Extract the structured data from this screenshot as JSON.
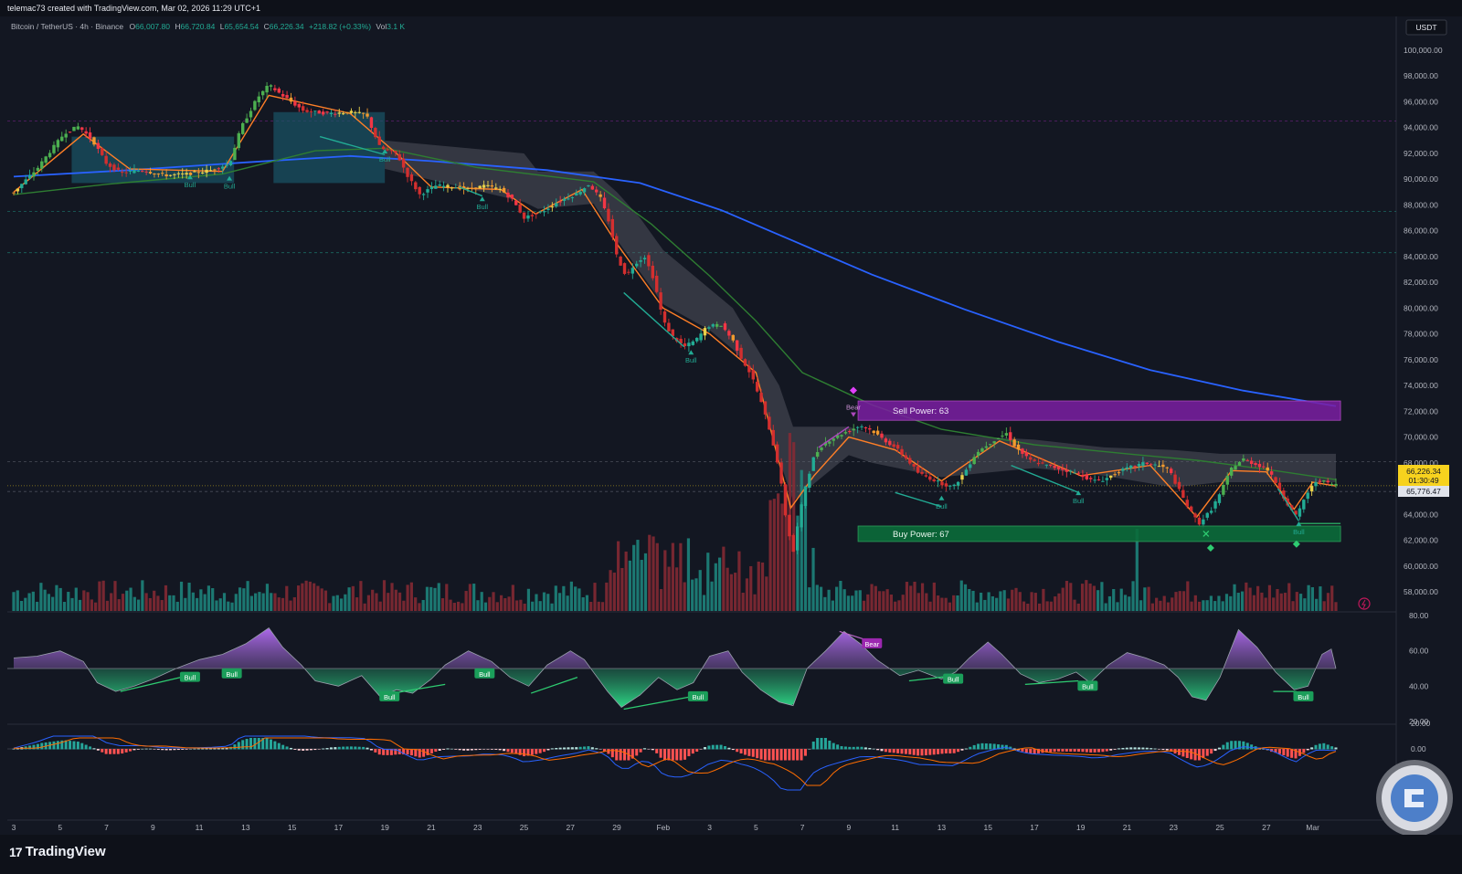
{
  "header": {
    "created_by": "telemac73 created with TradingView.com, Mar 02, 2026 11:29 UTC+1"
  },
  "legend": {
    "symbol": "Bitcoin / TetherUS · 4h · Binance",
    "open_label": "O",
    "open": "66,007.80",
    "high_label": "H",
    "high": "66,720.84",
    "low_label": "L",
    "low": "65,654.54",
    "close_label": "C",
    "close": "66,226.34",
    "change": "+218.82 (+0.33%)",
    "vol_label": "Vol",
    "vol": "3.1 K"
  },
  "currency_button": "USDT",
  "price_tags": {
    "last": "66,226.34",
    "countdown": "01:30:49",
    "level": "65,776.47"
  },
  "zones": {
    "sell_label": "Sell Power: 63",
    "buy_label": "Buy Power: 67"
  },
  "signals": {
    "bull": "Bull",
    "bear": "Bear"
  },
  "footer": {
    "brand": "TradingView"
  },
  "colors": {
    "background": "#131722",
    "bull_candle": "#22ab94",
    "bear_candle": "#f23645",
    "sma_blue": "#2962ff",
    "ema_green": "#2e7d32",
    "ema_orange": "#ff7f27",
    "sell_zone": "#7b1fa2",
    "buy_zone": "#0b6b3a",
    "price_tag": "#f7d21e"
  },
  "chart_data": [
    {
      "panel": "price",
      "type": "candlestick",
      "ylim": [
        57000,
        100800
      ],
      "y_ticks": [
        58000,
        60000,
        62000,
        64000,
        66000,
        68000,
        70000,
        72000,
        74000,
        76000,
        78000,
        80000,
        82000,
        84000,
        86000,
        88000,
        90000,
        92000,
        94000,
        96000,
        98000,
        100000
      ],
      "y_tick_labels": [
        "58,000.00",
        "60,000.00",
        "62,000.00",
        "64,000.00",
        "66,000.00",
        "68,000.00",
        "70,000.00",
        "72,000.00",
        "74,000.00",
        "76,000.00",
        "78,000.00",
        "80,000.00",
        "82,000.00",
        "84,000.00",
        "86,000.00",
        "88,000.00",
        "90,000.00",
        "92,000.00",
        "94,000.00",
        "96,000.00",
        "98,000.00",
        "100,000.00"
      ],
      "x_tick_labels": [
        "3",
        "5",
        "7",
        "9",
        "11",
        "13",
        "15",
        "17",
        "19",
        "21",
        "23",
        "25",
        "27",
        "29",
        "Feb",
        "3",
        "5",
        "7",
        "9",
        "11",
        "13",
        "15",
        "17",
        "19",
        "21",
        "23",
        "25",
        "27",
        "Mar"
      ],
      "price_path": [
        {
          "d": 0.0,
          "p": 89000
        },
        {
          "d": 1.0,
          "p": 90800
        },
        {
          "d": 1.5,
          "p": 92000
        },
        {
          "d": 2.2,
          "p": 93600
        },
        {
          "d": 2.8,
          "p": 94100
        },
        {
          "d": 3.4,
          "p": 93000
        },
        {
          "d": 4.0,
          "p": 91200
        },
        {
          "d": 4.6,
          "p": 90500
        },
        {
          "d": 5.5,
          "p": 90700
        },
        {
          "d": 6.5,
          "p": 90300
        },
        {
          "d": 7.5,
          "p": 90400
        },
        {
          "d": 8.5,
          "p": 90700
        },
        {
          "d": 9.3,
          "p": 91200
        },
        {
          "d": 9.8,
          "p": 94000
        },
        {
          "d": 10.5,
          "p": 96300
        },
        {
          "d": 11.0,
          "p": 97300
        },
        {
          "d": 11.5,
          "p": 96600
        },
        {
          "d": 12.5,
          "p": 95300
        },
        {
          "d": 13.5,
          "p": 95100
        },
        {
          "d": 14.5,
          "p": 95200
        },
        {
          "d": 15.2,
          "p": 95000
        },
        {
          "d": 15.8,
          "p": 92400
        },
        {
          "d": 16.5,
          "p": 92000
        },
        {
          "d": 17.0,
          "p": 90200
        },
        {
          "d": 17.5,
          "p": 88800
        },
        {
          "d": 18.2,
          "p": 89500
        },
        {
          "d": 19.0,
          "p": 89400
        },
        {
          "d": 19.6,
          "p": 89200
        },
        {
          "d": 20.3,
          "p": 89500
        },
        {
          "d": 21.0,
          "p": 89200
        },
        {
          "d": 21.5,
          "p": 88400
        },
        {
          "d": 22.0,
          "p": 87000
        },
        {
          "d": 22.8,
          "p": 87500
        },
        {
          "d": 23.5,
          "p": 88300
        },
        {
          "d": 24.2,
          "p": 88800
        },
        {
          "d": 24.8,
          "p": 89600
        },
        {
          "d": 25.3,
          "p": 88500
        },
        {
          "d": 25.7,
          "p": 86500
        },
        {
          "d": 26.0,
          "p": 84000
        },
        {
          "d": 26.4,
          "p": 82500
        },
        {
          "d": 26.8,
          "p": 83500
        },
        {
          "d": 27.2,
          "p": 84000
        },
        {
          "d": 27.6,
          "p": 82200
        },
        {
          "d": 28.0,
          "p": 79000
        },
        {
          "d": 28.4,
          "p": 77800
        },
        {
          "d": 28.9,
          "p": 77000
        },
        {
          "d": 29.4,
          "p": 77500
        },
        {
          "d": 29.9,
          "p": 78600
        },
        {
          "d": 30.5,
          "p": 78700
        },
        {
          "d": 31.0,
          "p": 77500
        },
        {
          "d": 31.4,
          "p": 76000
        },
        {
          "d": 31.8,
          "p": 74800
        },
        {
          "d": 32.2,
          "p": 72800
        },
        {
          "d": 32.6,
          "p": 70500
        },
        {
          "d": 33.0,
          "p": 67500
        },
        {
          "d": 33.3,
          "p": 63500
        },
        {
          "d": 33.6,
          "p": 61000
        },
        {
          "d": 33.8,
          "p": 63200
        },
        {
          "d": 34.1,
          "p": 66000
        },
        {
          "d": 34.5,
          "p": 68500
        },
        {
          "d": 34.9,
          "p": 69500
        },
        {
          "d": 35.4,
          "p": 70000
        },
        {
          "d": 36.0,
          "p": 70500
        },
        {
          "d": 36.5,
          "p": 70900
        },
        {
          "d": 37.0,
          "p": 70500
        },
        {
          "d": 37.5,
          "p": 69800
        },
        {
          "d": 38.0,
          "p": 69200
        },
        {
          "d": 38.5,
          "p": 68300
        },
        {
          "d": 39.0,
          "p": 67200
        },
        {
          "d": 39.5,
          "p": 66800
        },
        {
          "d": 40.0,
          "p": 66400
        },
        {
          "d": 40.5,
          "p": 66100
        },
        {
          "d": 41.0,
          "p": 67300
        },
        {
          "d": 41.5,
          "p": 68800
        },
        {
          "d": 42.2,
          "p": 69700
        },
        {
          "d": 42.8,
          "p": 70300
        },
        {
          "d": 43.2,
          "p": 69200
        },
        {
          "d": 43.8,
          "p": 68200
        },
        {
          "d": 44.5,
          "p": 67800
        },
        {
          "d": 45.2,
          "p": 67500
        },
        {
          "d": 46.0,
          "p": 67100
        },
        {
          "d": 46.5,
          "p": 66600
        },
        {
          "d": 47.0,
          "p": 66700
        },
        {
          "d": 47.6,
          "p": 67300
        },
        {
          "d": 48.2,
          "p": 67700
        },
        {
          "d": 48.8,
          "p": 68000
        },
        {
          "d": 49.3,
          "p": 67800
        },
        {
          "d": 49.8,
          "p": 67500
        },
        {
          "d": 50.2,
          "p": 66000
        },
        {
          "d": 50.7,
          "p": 64300
        },
        {
          "d": 51.1,
          "p": 63300
        },
        {
          "d": 51.6,
          "p": 64300
        },
        {
          "d": 52.0,
          "p": 65600
        },
        {
          "d": 52.5,
          "p": 67600
        },
        {
          "d": 53.0,
          "p": 68300
        },
        {
          "d": 53.5,
          "p": 67900
        },
        {
          "d": 54.0,
          "p": 67600
        },
        {
          "d": 54.5,
          "p": 66200
        },
        {
          "d": 55.0,
          "p": 64500
        },
        {
          "d": 55.3,
          "p": 63800
        },
        {
          "d": 55.7,
          "p": 65500
        },
        {
          "d": 56.2,
          "p": 66700
        },
        {
          "d": 56.7,
          "p": 66400
        },
        {
          "d": 57.0,
          "p": 66300
        }
      ],
      "ema_fast_orange": [
        {
          "d": 0.0,
          "p": 89000
        },
        {
          "d": 3.0,
          "p": 93500
        },
        {
          "d": 5.0,
          "p": 90800
        },
        {
          "d": 9.0,
          "p": 90600
        },
        {
          "d": 11.0,
          "p": 96500
        },
        {
          "d": 14.5,
          "p": 95100
        },
        {
          "d": 16.5,
          "p": 92000
        },
        {
          "d": 18.0,
          "p": 89400
        },
        {
          "d": 21.0,
          "p": 89200
        },
        {
          "d": 22.5,
          "p": 87300
        },
        {
          "d": 24.5,
          "p": 89200
        },
        {
          "d": 26.0,
          "p": 85000
        },
        {
          "d": 28.0,
          "p": 80000
        },
        {
          "d": 30.0,
          "p": 78000
        },
        {
          "d": 32.0,
          "p": 75000
        },
        {
          "d": 33.5,
          "p": 64500
        },
        {
          "d": 34.5,
          "p": 67000
        },
        {
          "d": 36.0,
          "p": 70000
        },
        {
          "d": 38.0,
          "p": 69000
        },
        {
          "d": 40.0,
          "p": 66600
        },
        {
          "d": 42.5,
          "p": 69700
        },
        {
          "d": 46.0,
          "p": 67000
        },
        {
          "d": 49.0,
          "p": 67800
        },
        {
          "d": 51.0,
          "p": 63800
        },
        {
          "d": 52.5,
          "p": 67400
        },
        {
          "d": 54.0,
          "p": 67300
        },
        {
          "d": 55.2,
          "p": 64400
        },
        {
          "d": 56.0,
          "p": 66500
        },
        {
          "d": 57.0,
          "p": 66200
        }
      ],
      "ema_mid_green": [
        {
          "d": 0.0,
          "p": 88800
        },
        {
          "d": 4.0,
          "p": 89600
        },
        {
          "d": 9.0,
          "p": 90400
        },
        {
          "d": 13.0,
          "p": 92200
        },
        {
          "d": 16.0,
          "p": 92400
        },
        {
          "d": 20.0,
          "p": 90900
        },
        {
          "d": 25.0,
          "p": 89800
        },
        {
          "d": 27.5,
          "p": 86500
        },
        {
          "d": 30.0,
          "p": 82500
        },
        {
          "d": 32.0,
          "p": 79000
        },
        {
          "d": 34.0,
          "p": 75000
        },
        {
          "d": 37.0,
          "p": 72500
        },
        {
          "d": 40.0,
          "p": 70600
        },
        {
          "d": 44.0,
          "p": 69400
        },
        {
          "d": 48.0,
          "p": 68700
        },
        {
          "d": 51.0,
          "p": 68200
        },
        {
          "d": 54.0,
          "p": 67500
        },
        {
          "d": 57.0,
          "p": 66700
        }
      ],
      "sma_slow_blue": [
        {
          "d": 0.0,
          "p": 90200
        },
        {
          "d": 5.0,
          "p": 90700
        },
        {
          "d": 10.0,
          "p": 91300
        },
        {
          "d": 14.5,
          "p": 91800
        },
        {
          "d": 18.0,
          "p": 91400
        },
        {
          "d": 23.0,
          "p": 90700
        },
        {
          "d": 27.0,
          "p": 89700
        },
        {
          "d": 30.5,
          "p": 87600
        },
        {
          "d": 33.5,
          "p": 85300
        },
        {
          "d": 37.0,
          "p": 82600
        },
        {
          "d": 41.0,
          "p": 79900
        },
        {
          "d": 45.0,
          "p": 77400
        },
        {
          "d": 49.0,
          "p": 75200
        },
        {
          "d": 53.0,
          "p": 73600
        },
        {
          "d": 57.0,
          "p": 72400
        }
      ],
      "sell_zone": {
        "low": 71300,
        "high": 72800,
        "from_d": 36.4,
        "to_d": 57.2
      },
      "buy_zone": {
        "low": 61900,
        "high": 63100,
        "from_d": 36.4,
        "to_d": 57.2
      }
    },
    {
      "panel": "oscillator",
      "type": "area",
      "ylim": [
        20,
        80
      ],
      "y_ticks": [
        20,
        40,
        60,
        80
      ],
      "y_tick_labels": [
        "20.00",
        "40.00",
        "60.00",
        "80.00"
      ],
      "midline": 50,
      "values_path": [
        {
          "d": 0,
          "v": 56
        },
        {
          "d": 1,
          "v": 57
        },
        {
          "d": 2,
          "v": 60
        },
        {
          "d": 3,
          "v": 54
        },
        {
          "d": 3.6,
          "v": 42
        },
        {
          "d": 4.4,
          "v": 37
        },
        {
          "d": 5.2,
          "v": 40
        },
        {
          "d": 6,
          "v": 44
        },
        {
          "d": 7,
          "v": 50
        },
        {
          "d": 8,
          "v": 55
        },
        {
          "d": 9,
          "v": 58
        },
        {
          "d": 10,
          "v": 64
        },
        {
          "d": 11,
          "v": 73
        },
        {
          "d": 11.6,
          "v": 62
        },
        {
          "d": 12.4,
          "v": 52
        },
        {
          "d": 13,
          "v": 43
        },
        {
          "d": 14,
          "v": 40
        },
        {
          "d": 15,
          "v": 46
        },
        {
          "d": 15.8,
          "v": 34
        },
        {
          "d": 16.5,
          "v": 38
        },
        {
          "d": 17.2,
          "v": 36
        },
        {
          "d": 18,
          "v": 44
        },
        {
          "d": 18.6,
          "v": 52
        },
        {
          "d": 19.6,
          "v": 60
        },
        {
          "d": 20.6,
          "v": 54
        },
        {
          "d": 21.4,
          "v": 45
        },
        {
          "d": 22.2,
          "v": 40
        },
        {
          "d": 23,
          "v": 52
        },
        {
          "d": 24,
          "v": 60
        },
        {
          "d": 24.6,
          "v": 55
        },
        {
          "d": 25.6,
          "v": 37
        },
        {
          "d": 26.2,
          "v": 28
        },
        {
          "d": 27,
          "v": 35
        },
        {
          "d": 27.8,
          "v": 45
        },
        {
          "d": 28.6,
          "v": 38
        },
        {
          "d": 29.3,
          "v": 42
        },
        {
          "d": 30,
          "v": 57
        },
        {
          "d": 30.8,
          "v": 60
        },
        {
          "d": 31.4,
          "v": 48
        },
        {
          "d": 32.2,
          "v": 38
        },
        {
          "d": 33,
          "v": 31
        },
        {
          "d": 33.6,
          "v": 29
        },
        {
          "d": 34.2,
          "v": 50
        },
        {
          "d": 35,
          "v": 60
        },
        {
          "d": 35.8,
          "v": 71
        },
        {
          "d": 36.5,
          "v": 64
        },
        {
          "d": 37.2,
          "v": 55
        },
        {
          "d": 38.2,
          "v": 46
        },
        {
          "d": 39,
          "v": 49
        },
        {
          "d": 40,
          "v": 44
        },
        {
          "d": 40.6,
          "v": 48
        },
        {
          "d": 41.2,
          "v": 56
        },
        {
          "d": 42,
          "v": 65
        },
        {
          "d": 42.6,
          "v": 58
        },
        {
          "d": 43.4,
          "v": 47
        },
        {
          "d": 44.2,
          "v": 42
        },
        {
          "d": 45,
          "v": 44
        },
        {
          "d": 45.8,
          "v": 48
        },
        {
          "d": 46.4,
          "v": 42
        },
        {
          "d": 47.2,
          "v": 52
        },
        {
          "d": 48,
          "v": 59
        },
        {
          "d": 48.8,
          "v": 56
        },
        {
          "d": 49.6,
          "v": 52
        },
        {
          "d": 50.2,
          "v": 45
        },
        {
          "d": 50.8,
          "v": 34
        },
        {
          "d": 51.4,
          "v": 32
        },
        {
          "d": 52,
          "v": 45
        },
        {
          "d": 52.8,
          "v": 72
        },
        {
          "d": 53.6,
          "v": 62
        },
        {
          "d": 54.4,
          "v": 48
        },
        {
          "d": 55.2,
          "v": 38
        },
        {
          "d": 55.8,
          "v": 40
        },
        {
          "d": 56.4,
          "v": 58
        },
        {
          "d": 56.8,
          "v": 61
        },
        {
          "d": 57,
          "v": 50
        }
      ]
    },
    {
      "panel": "macd",
      "type": "line",
      "y_ticks": [
        20,
        0
      ],
      "y_tick_labels": [
        "20.00",
        "0.00"
      ]
    }
  ]
}
